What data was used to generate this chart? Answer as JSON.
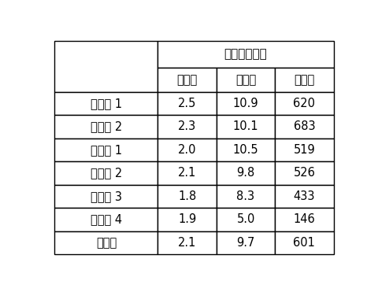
{
  "title": "产量（公斤）",
  "col_headers": [
    "第一年",
    "第二年",
    "第三年"
  ],
  "row_headers": [
    "实施例 1",
    "实施例 2",
    "对比例 1",
    "对比例 2",
    "对比例 3",
    "对比例 4",
    "对照组"
  ],
  "values": [
    [
      "2.5",
      "10.9",
      "620"
    ],
    [
      "2.3",
      "10.1",
      "683"
    ],
    [
      "2.0",
      "10.5",
      "519"
    ],
    [
      "2.1",
      "9.8",
      "526"
    ],
    [
      "1.8",
      "8.3",
      "433"
    ],
    [
      "1.9",
      "5.0",
      "146"
    ],
    [
      "2.1",
      "9.7",
      "601"
    ]
  ],
  "bg_color": "#ffffff",
  "border_color": "#000000",
  "text_color": "#000000",
  "font_size": 10.5,
  "title_font_size": 11,
  "fig_width": 4.81,
  "fig_height": 3.71,
  "dpi": 100
}
